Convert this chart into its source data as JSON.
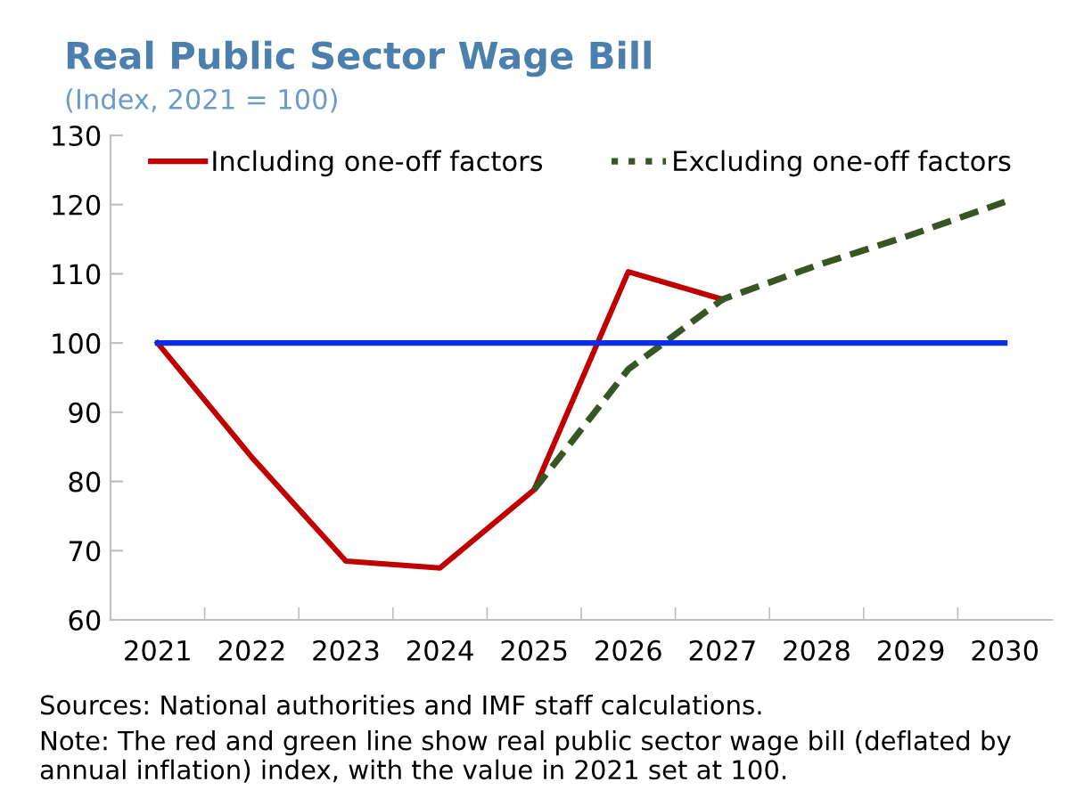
{
  "chart_data": {
    "type": "line",
    "title": "Real Public Sector Wage Bill",
    "subtitle": "(Index, 2021 = 100)",
    "categories": [
      "2021",
      "2022",
      "2023",
      "2024",
      "2025",
      "2026",
      "2027",
      "2028",
      "2029",
      "2030"
    ],
    "series": [
      {
        "name": "Including one-off factors",
        "color": "#c00000",
        "line_style": "solid",
        "values": [
          100,
          83.5,
          68.5,
          67.5,
          78.8,
          110.3,
          106.3,
          null,
          null,
          null
        ]
      },
      {
        "name": "Excluding one-off factors",
        "color": "#375623",
        "line_style": "dashed",
        "values": [
          null,
          null,
          null,
          null,
          78.8,
          96.2,
          106.3,
          111.2,
          115.6,
          120.4
        ]
      },
      {
        "color": "#0a2ee6",
        "line_style": "solid",
        "values": [
          100,
          100,
          100,
          100,
          100,
          100,
          100,
          100,
          100,
          100
        ]
      }
    ],
    "ylim": [
      60,
      130
    ],
    "yticks": [
      60,
      70,
      80,
      90,
      100,
      110,
      120,
      130
    ],
    "grid": false,
    "legend": "top",
    "marker": "none",
    "annotations": [
      "Sources: National authorities and IMF staff calculations.",
      "Note: The red and green line show real public sector wage bill (deflated by annual inflation) index, with the value in 2021 set at 100."
    ]
  }
}
